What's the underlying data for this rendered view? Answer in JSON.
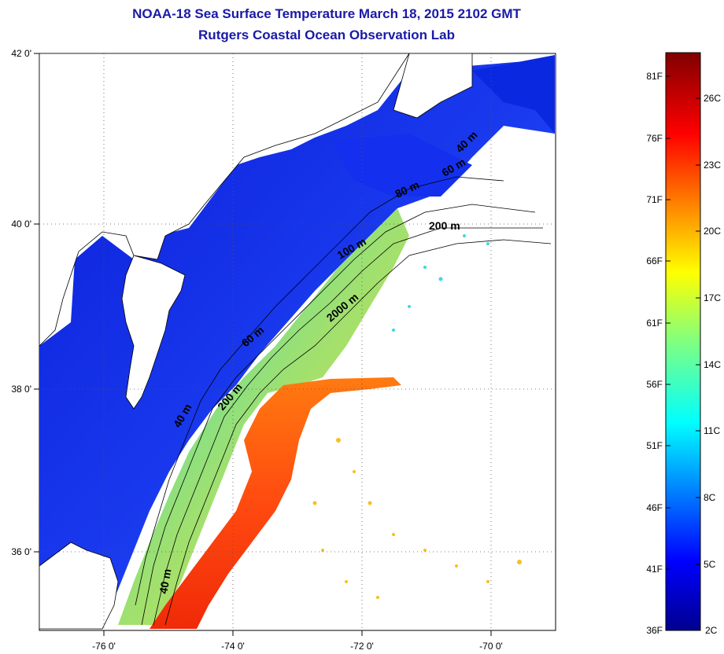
{
  "title_line1": "NOAA-18 Sea Surface Temperature March 18, 2015 2102 GMT",
  "title_line2": "Rutgers Coastal Ocean Observation Lab",
  "colors": {
    "title": "#1a1aa6",
    "land": "#ffffff",
    "no_data": "#ffffff"
  },
  "map": {
    "lon_ticks": [
      "-76 0'",
      "-74 0'",
      "-72 0'",
      "-70 0'"
    ],
    "lat_ticks": [
      "42 0'",
      "40 0'",
      "38 0'",
      "36 0'"
    ],
    "contour_labels": [
      "40 m",
      "60 m",
      "80 m",
      "200 m",
      "100 m",
      "2000 m",
      "60 m",
      "200 m",
      "40 m",
      "40 m"
    ]
  },
  "colorbar": {
    "fahrenheit": [
      "81F",
      "76F",
      "71F",
      "66F",
      "61F",
      "56F",
      "51F",
      "46F",
      "41F",
      "36F"
    ],
    "celsius": [
      "26C",
      "23C",
      "20C",
      "17C",
      "14C",
      "11C",
      "8C",
      "5C",
      "2C"
    ],
    "colormap": "jet"
  }
}
